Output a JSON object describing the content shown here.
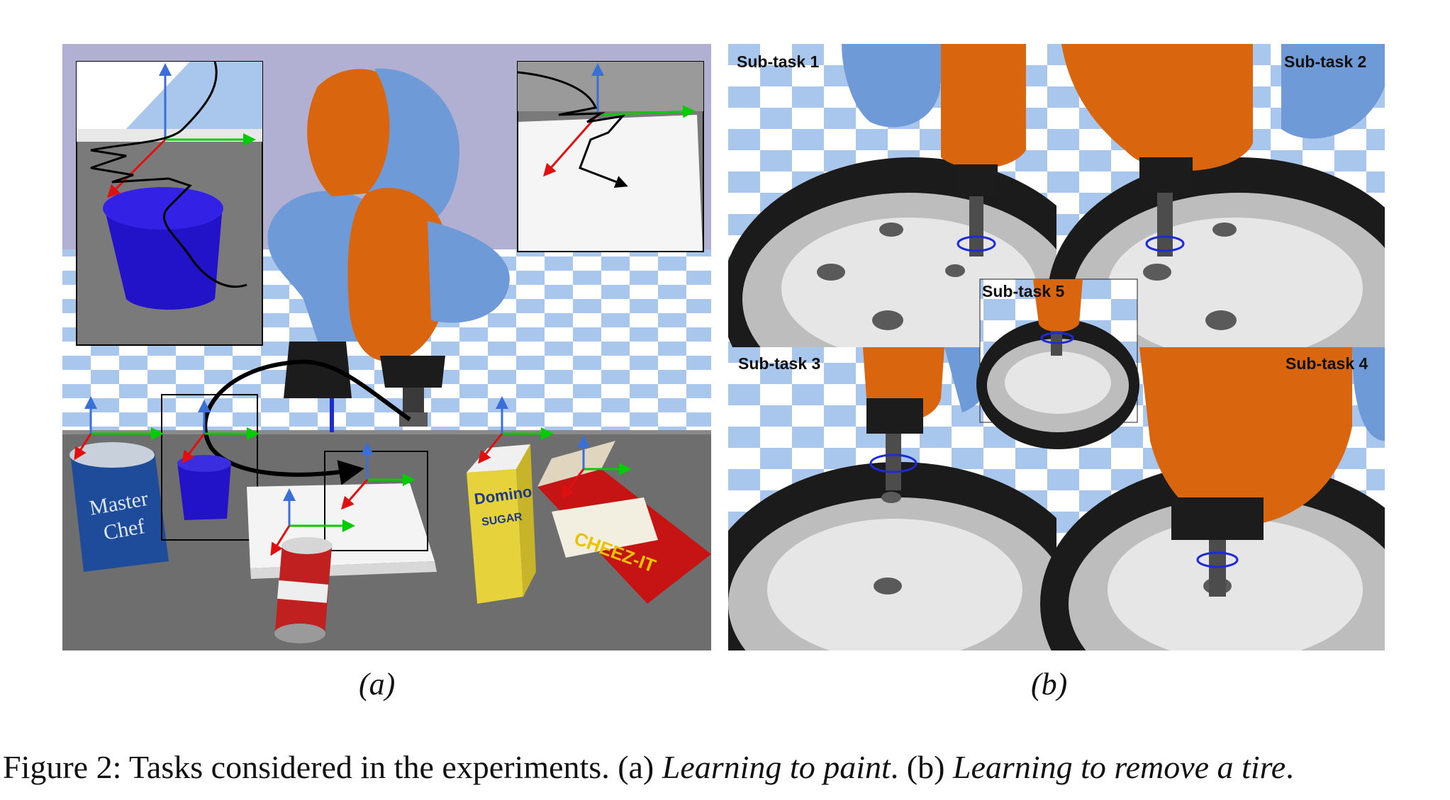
{
  "figure": {
    "caption": {
      "prefix": "Figure 2:  Tasks considered in the experiments. (a) ",
      "task_a": "Learning to paint",
      "middle": ". (b) ",
      "task_b": "Learning to remove a tire",
      "suffix": "."
    },
    "panels": [
      {
        "label": "(a)"
      },
      {
        "label": "(b)"
      }
    ],
    "subtasks": [
      "Sub-task 1",
      "Sub-task 2",
      "Sub-task 3",
      "Sub-task 4",
      "Sub-task 5"
    ],
    "colors": {
      "robot_blue": "#6e9ad8",
      "robot_orange": "#d9660f",
      "checker_light": "#ffffff",
      "checker_dark": "#a9c6ec",
      "sky_panel_a": "#b2b0d2",
      "table_grey": "#6e6e6e",
      "axis_x": "#00cc00",
      "axis_y": "#3b6fd8",
      "axis_z": "#e01010",
      "tire_black": "#1b1b1b",
      "rim_grey": "#d8d8d8",
      "paint_cup": "#2212c8"
    }
  }
}
